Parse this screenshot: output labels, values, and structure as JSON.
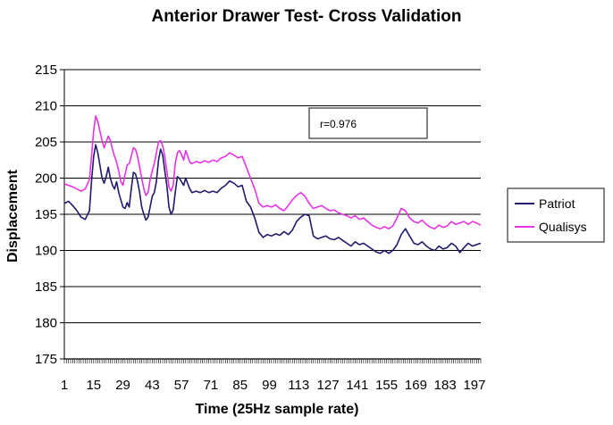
{
  "chart_data": {
    "type": "line",
    "title": "Anterior Drawer Test- Cross Validation",
    "xlabel": "Time (25Hz sample rate)",
    "ylabel": "Displacement",
    "ylim": [
      175,
      215
    ],
    "xlim": [
      1,
      200
    ],
    "y_ticks": [
      175,
      180,
      185,
      190,
      195,
      200,
      205,
      210,
      215
    ],
    "x_tick_labels": [
      "1",
      "15",
      "29",
      "43",
      "57",
      "71",
      "85",
      "99",
      "113",
      "127",
      "141",
      "155",
      "169",
      "183",
      "197"
    ],
    "grid": true,
    "legend_position": "right",
    "annotation": "r=0.976",
    "series": [
      {
        "name": "Patriot",
        "color": "#1f1a6b",
        "points": [
          [
            1,
            196.5
          ],
          [
            3,
            196.8
          ],
          [
            5,
            196.2
          ],
          [
            7,
            195.5
          ],
          [
            9,
            194.6
          ],
          [
            11,
            194.3
          ],
          [
            13,
            195.5
          ],
          [
            14,
            199.5
          ],
          [
            15,
            203.0
          ],
          [
            16,
            204.6
          ],
          [
            17,
            203.5
          ],
          [
            18,
            201.8
          ],
          [
            19,
            200.0
          ],
          [
            20,
            199.3
          ],
          [
            21,
            200.2
          ],
          [
            22,
            201.5
          ],
          [
            23,
            200.0
          ],
          [
            24,
            199.0
          ],
          [
            25,
            198.5
          ],
          [
            26,
            199.5
          ],
          [
            27,
            198.0
          ],
          [
            28,
            197.0
          ],
          [
            29,
            196.0
          ],
          [
            30,
            195.8
          ],
          [
            31,
            196.6
          ],
          [
            32,
            196.0
          ],
          [
            33,
            198.5
          ],
          [
            34,
            200.8
          ],
          [
            35,
            200.6
          ],
          [
            36,
            199.5
          ],
          [
            37,
            198.0
          ],
          [
            38,
            196.0
          ],
          [
            39,
            195.0
          ],
          [
            40,
            194.2
          ],
          [
            41,
            194.6
          ],
          [
            42,
            196.0
          ],
          [
            43,
            197.5
          ],
          [
            44,
            198.0
          ],
          [
            45,
            199.5
          ],
          [
            46,
            202.5
          ],
          [
            47,
            204.0
          ],
          [
            48,
            203.2
          ],
          [
            49,
            201.0
          ],
          [
            50,
            199.0
          ],
          [
            51,
            196.0
          ],
          [
            52,
            195.0
          ],
          [
            53,
            195.6
          ],
          [
            54,
            198.0
          ],
          [
            55,
            200.2
          ],
          [
            56,
            200.0
          ],
          [
            57,
            199.5
          ],
          [
            58,
            199.0
          ],
          [
            59,
            200.0
          ],
          [
            60,
            199.2
          ],
          [
            61,
            198.5
          ],
          [
            62,
            198.0
          ],
          [
            64,
            198.2
          ],
          [
            66,
            198.0
          ],
          [
            68,
            198.3
          ],
          [
            70,
            198.0
          ],
          [
            72,
            198.2
          ],
          [
            74,
            198.0
          ],
          [
            76,
            198.6
          ],
          [
            78,
            199.0
          ],
          [
            80,
            199.6
          ],
          [
            82,
            199.3
          ],
          [
            84,
            198.8
          ],
          [
            86,
            199.0
          ],
          [
            88,
            196.8
          ],
          [
            90,
            196.0
          ],
          [
            92,
            194.5
          ],
          [
            94,
            192.5
          ],
          [
            96,
            191.8
          ],
          [
            98,
            192.2
          ],
          [
            100,
            192.0
          ],
          [
            102,
            192.3
          ],
          [
            104,
            192.1
          ],
          [
            106,
            192.6
          ],
          [
            108,
            192.2
          ],
          [
            110,
            192.8
          ],
          [
            112,
            194.0
          ],
          [
            114,
            194.6
          ],
          [
            116,
            195.0
          ],
          [
            118,
            194.8
          ],
          [
            120,
            192.0
          ],
          [
            122,
            191.6
          ],
          [
            124,
            191.8
          ],
          [
            126,
            192.0
          ],
          [
            128,
            191.6
          ],
          [
            130,
            191.5
          ],
          [
            132,
            191.8
          ],
          [
            134,
            191.4
          ],
          [
            136,
            191.0
          ],
          [
            138,
            190.6
          ],
          [
            140,
            191.2
          ],
          [
            142,
            190.8
          ],
          [
            144,
            191.0
          ],
          [
            146,
            190.6
          ],
          [
            148,
            190.2
          ],
          [
            150,
            189.8
          ],
          [
            152,
            189.6
          ],
          [
            154,
            190.0
          ],
          [
            156,
            189.6
          ],
          [
            158,
            190.0
          ],
          [
            160,
            190.8
          ],
          [
            162,
            192.2
          ],
          [
            164,
            193.0
          ],
          [
            166,
            192.0
          ],
          [
            168,
            191.0
          ],
          [
            170,
            190.8
          ],
          [
            172,
            191.2
          ],
          [
            174,
            190.6
          ],
          [
            176,
            190.2
          ],
          [
            178,
            190.0
          ],
          [
            180,
            190.6
          ],
          [
            182,
            190.2
          ],
          [
            184,
            190.4
          ],
          [
            186,
            191.0
          ],
          [
            188,
            190.6
          ],
          [
            190,
            189.7
          ],
          [
            192,
            190.4
          ],
          [
            194,
            191.0
          ],
          [
            196,
            190.6
          ],
          [
            198,
            190.8
          ],
          [
            200,
            191.0
          ]
        ]
      },
      {
        "name": "Qualisys",
        "color": "#e633e6",
        "points": [
          [
            1,
            199.2
          ],
          [
            3,
            199.0
          ],
          [
            5,
            198.8
          ],
          [
            7,
            198.5
          ],
          [
            9,
            198.2
          ],
          [
            11,
            198.5
          ],
          [
            13,
            199.8
          ],
          [
            14,
            203.0
          ],
          [
            15,
            206.5
          ],
          [
            16,
            208.6
          ],
          [
            17,
            207.8
          ],
          [
            18,
            206.5
          ],
          [
            19,
            205.2
          ],
          [
            20,
            204.2
          ],
          [
            21,
            205.0
          ],
          [
            22,
            205.8
          ],
          [
            23,
            205.2
          ],
          [
            24,
            204.0
          ],
          [
            25,
            203.0
          ],
          [
            26,
            202.2
          ],
          [
            27,
            201.0
          ],
          [
            28,
            199.5
          ],
          [
            29,
            199.0
          ],
          [
            30,
            200.5
          ],
          [
            31,
            201.8
          ],
          [
            32,
            202.0
          ],
          [
            33,
            203.0
          ],
          [
            34,
            204.2
          ],
          [
            35,
            204.0
          ],
          [
            36,
            203.0
          ],
          [
            37,
            201.5
          ],
          [
            38,
            200.0
          ],
          [
            39,
            198.5
          ],
          [
            40,
            197.6
          ],
          [
            41,
            198.0
          ],
          [
            42,
            199.8
          ],
          [
            43,
            201.0
          ],
          [
            44,
            202.0
          ],
          [
            45,
            203.5
          ],
          [
            46,
            205.0
          ],
          [
            47,
            205.2
          ],
          [
            48,
            204.5
          ],
          [
            49,
            203.0
          ],
          [
            50,
            201.0
          ],
          [
            51,
            198.8
          ],
          [
            52,
            198.2
          ],
          [
            53,
            199.0
          ],
          [
            54,
            202.0
          ],
          [
            55,
            203.5
          ],
          [
            56,
            203.8
          ],
          [
            57,
            203.3
          ],
          [
            58,
            202.5
          ],
          [
            59,
            203.8
          ],
          [
            60,
            203.0
          ],
          [
            61,
            202.2
          ],
          [
            62,
            202.0
          ],
          [
            64,
            202.3
          ],
          [
            66,
            202.1
          ],
          [
            68,
            202.4
          ],
          [
            70,
            202.2
          ],
          [
            72,
            202.5
          ],
          [
            74,
            202.3
          ],
          [
            76,
            202.8
          ],
          [
            78,
            203.0
          ],
          [
            80,
            203.5
          ],
          [
            82,
            203.2
          ],
          [
            84,
            202.8
          ],
          [
            86,
            203.0
          ],
          [
            88,
            201.5
          ],
          [
            90,
            200.0
          ],
          [
            92,
            198.5
          ],
          [
            94,
            196.5
          ],
          [
            96,
            196.0
          ],
          [
            98,
            196.2
          ],
          [
            100,
            196.0
          ],
          [
            102,
            196.3
          ],
          [
            104,
            195.8
          ],
          [
            106,
            195.5
          ],
          [
            108,
            196.2
          ],
          [
            110,
            197.0
          ],
          [
            112,
            197.6
          ],
          [
            114,
            198.0
          ],
          [
            116,
            197.5
          ],
          [
            118,
            196.5
          ],
          [
            120,
            195.8
          ],
          [
            122,
            196.0
          ],
          [
            124,
            196.2
          ],
          [
            126,
            195.8
          ],
          [
            128,
            195.5
          ],
          [
            130,
            195.6
          ],
          [
            132,
            195.2
          ],
          [
            134,
            195.0
          ],
          [
            136,
            194.8
          ],
          [
            138,
            194.5
          ],
          [
            140,
            194.8
          ],
          [
            142,
            194.3
          ],
          [
            144,
            194.5
          ],
          [
            146,
            194.0
          ],
          [
            148,
            193.5
          ],
          [
            150,
            193.2
          ],
          [
            152,
            193.0
          ],
          [
            154,
            193.3
          ],
          [
            156,
            193.0
          ],
          [
            158,
            193.4
          ],
          [
            160,
            194.5
          ],
          [
            162,
            195.8
          ],
          [
            164,
            195.5
          ],
          [
            166,
            194.5
          ],
          [
            168,
            194.0
          ],
          [
            170,
            193.8
          ],
          [
            172,
            194.2
          ],
          [
            174,
            193.6
          ],
          [
            176,
            193.2
          ],
          [
            178,
            193.0
          ],
          [
            180,
            193.5
          ],
          [
            182,
            193.2
          ],
          [
            184,
            193.4
          ],
          [
            186,
            194.0
          ],
          [
            188,
            193.6
          ],
          [
            190,
            193.8
          ],
          [
            192,
            194.0
          ],
          [
            194,
            193.6
          ],
          [
            196,
            194.0
          ],
          [
            198,
            193.8
          ],
          [
            200,
            193.5
          ]
        ]
      }
    ]
  }
}
